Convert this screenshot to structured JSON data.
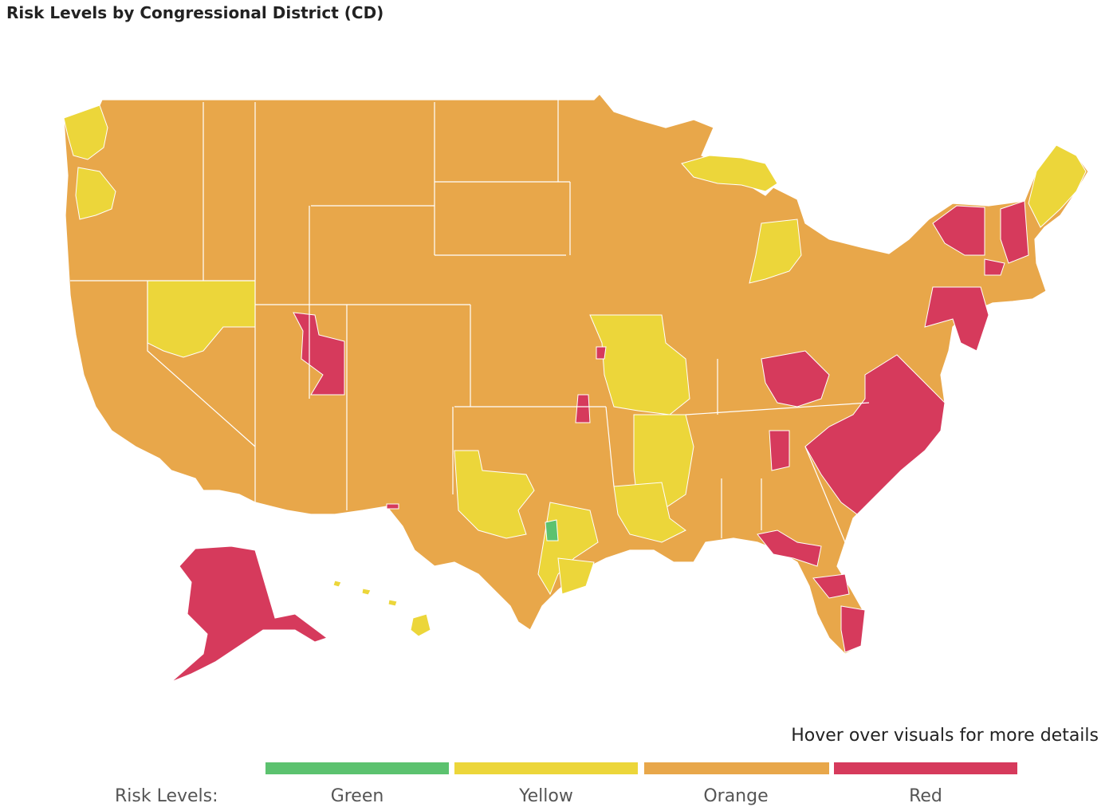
{
  "title": "Risk Levels by Congressional District (CD)",
  "hint": "Hover over visuals for more details",
  "legend": {
    "title": "Risk Levels:",
    "items": [
      {
        "label": "Green",
        "color": "#5cc26f"
      },
      {
        "label": "Yellow",
        "color": "#ecd63a"
      },
      {
        "label": "Orange",
        "color": "#e8a74a"
      },
      {
        "label": "Red",
        "color": "#d63a5c"
      }
    ]
  },
  "colors": {
    "green": "#5cc26f",
    "yellow": "#ecd63a",
    "orange": "#e8a74a",
    "red": "#d63a5c",
    "border": "#ffffff"
  }
}
